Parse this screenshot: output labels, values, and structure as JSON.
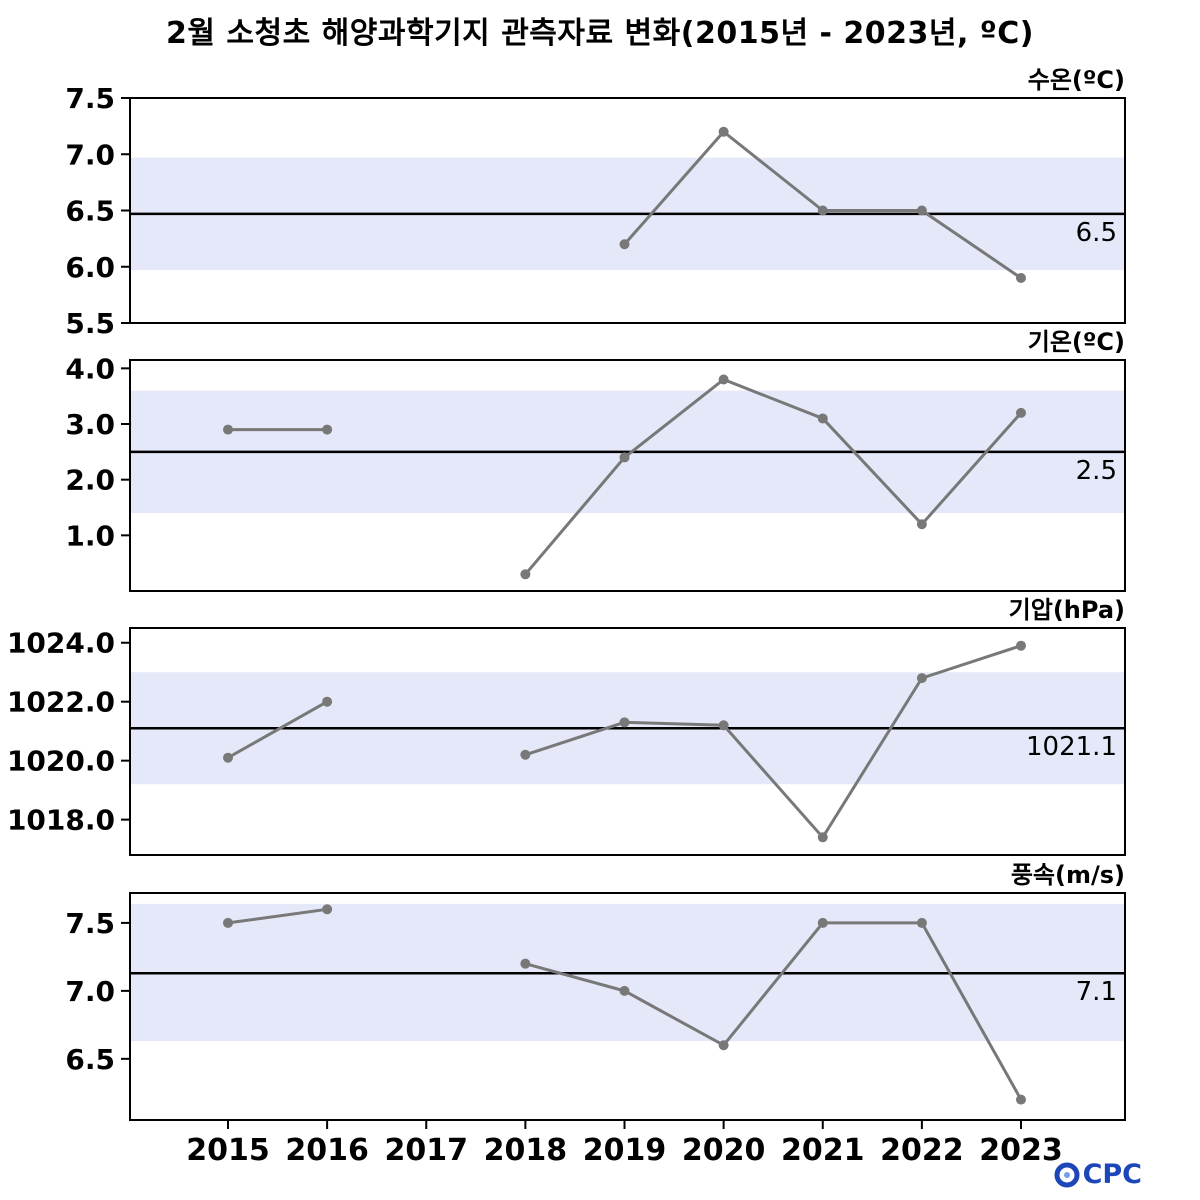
{
  "title": "2월 소청초 해양과학기지 관측자료 변화(2015년 - 2023년, ºC)",
  "x_labels": [
    "2015",
    "2016",
    "2017",
    "2018",
    "2019",
    "2020",
    "2021",
    "2022",
    "2023"
  ],
  "logo_text": "CPC",
  "colors": {
    "line": "#787878",
    "band": "#e4e8f8",
    "mean_line": "#000000",
    "logo_blue": "#1d46b8"
  },
  "chart_data": [
    {
      "type": "line",
      "panel_title": "수온(ºC)",
      "x": [
        2015,
        2016,
        2017,
        2018,
        2019,
        2020,
        2021,
        2022,
        2023
      ],
      "values": [
        null,
        null,
        null,
        null,
        6.2,
        7.2,
        6.5,
        6.5,
        5.9
      ],
      "mean": 6.47,
      "mean_label": "6.5",
      "band": [
        5.97,
        6.97
      ],
      "ylim": [
        5.5,
        7.5
      ],
      "yticks": [
        5.5,
        6.0,
        6.5,
        7.0,
        7.5
      ],
      "ytick_labels": [
        "5.5",
        "6.0",
        "6.5",
        "7.0",
        "7.5"
      ],
      "grid": false,
      "legend": "none"
    },
    {
      "type": "line",
      "panel_title": "기온(ºC)",
      "x": [
        2015,
        2016,
        2017,
        2018,
        2019,
        2020,
        2021,
        2022,
        2023
      ],
      "values": [
        2.9,
        2.9,
        null,
        0.3,
        2.4,
        3.8,
        3.1,
        1.2,
        3.2
      ],
      "mean": 2.5,
      "mean_label": "2.5",
      "band": [
        1.4,
        3.6
      ],
      "ylim": [
        0.0,
        4.15
      ],
      "yticks": [
        1.0,
        2.0,
        3.0,
        4.0
      ],
      "ytick_labels": [
        "1.0",
        "2.0",
        "3.0",
        "4.0"
      ],
      "grid": false,
      "legend": "none"
    },
    {
      "type": "line",
      "panel_title": "기압(hPa)",
      "x": [
        2015,
        2016,
        2017,
        2018,
        2019,
        2020,
        2021,
        2022,
        2023
      ],
      "values": [
        1020.1,
        1022.0,
        null,
        1020.2,
        1021.3,
        1021.2,
        1017.4,
        1022.8,
        1023.9
      ],
      "mean": 1021.1,
      "mean_label": "1021.1",
      "band": [
        1019.2,
        1023.0
      ],
      "ylim": [
        1016.8,
        1024.5
      ],
      "yticks": [
        1018.0,
        1020.0,
        1022.0,
        1024.0
      ],
      "ytick_labels": [
        "1018.0",
        "1020.0",
        "1022.0",
        "1024.0"
      ],
      "grid": false,
      "legend": "none"
    },
    {
      "type": "line",
      "panel_title": "풍속(m/s)",
      "x": [
        2015,
        2016,
        2017,
        2018,
        2019,
        2020,
        2021,
        2022,
        2023
      ],
      "values": [
        7.5,
        7.6,
        null,
        7.2,
        7.0,
        6.6,
        7.5,
        7.5,
        6.2
      ],
      "mean": 7.13,
      "mean_label": "7.1",
      "band": [
        6.63,
        7.64
      ],
      "ylim": [
        6.05,
        7.72
      ],
      "yticks": [
        6.5,
        7.0,
        7.5
      ],
      "ytick_labels": [
        "6.5",
        "7.0",
        "7.5"
      ],
      "grid": false,
      "legend": "none"
    }
  ]
}
